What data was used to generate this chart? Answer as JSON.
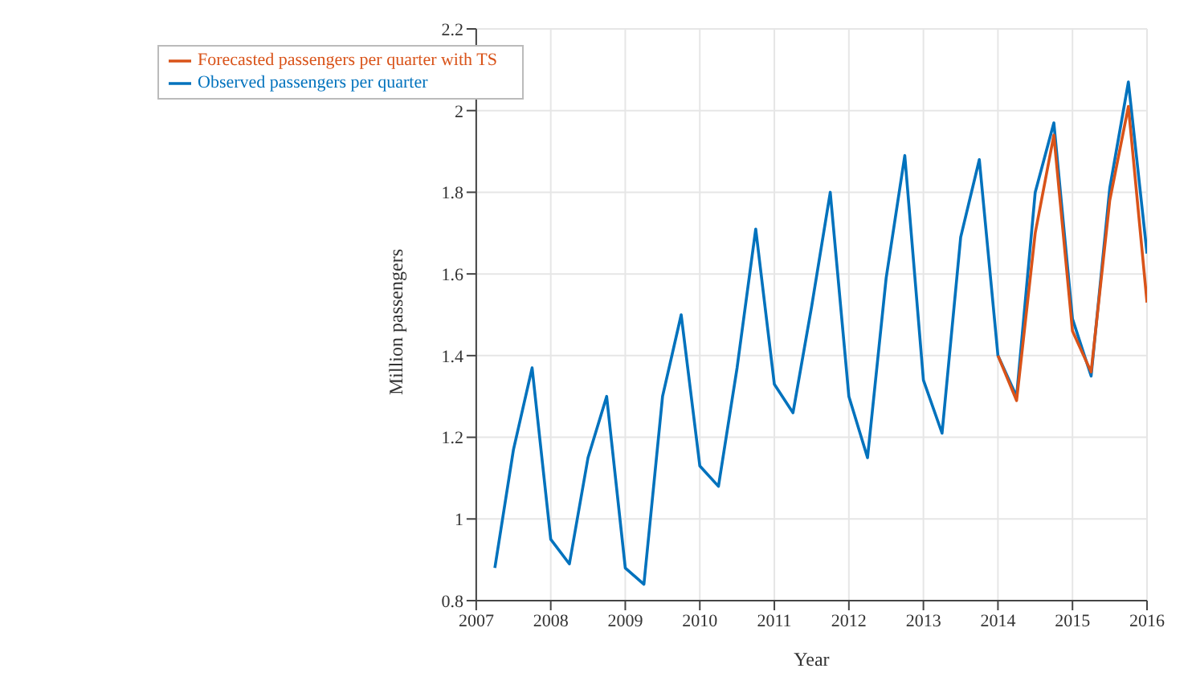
{
  "chart_data": {
    "type": "line",
    "xlabel": "Year",
    "ylabel": "Million passengers",
    "xlim": [
      2007,
      2016
    ],
    "xticks": [
      2007,
      2008,
      2009,
      2010,
      2011,
      2012,
      2013,
      2014,
      2015,
      2016
    ],
    "ylim": [
      0.8,
      2.2
    ],
    "yticks": [
      0.8,
      1,
      1.2,
      1.4,
      1.6,
      1.8,
      2,
      2.2
    ],
    "grid": true,
    "legend": "top left",
    "marker": "none",
    "series": [
      {
        "name": "Observed passengers per quarter",
        "color": "#0072bd",
        "x": [
          2007.25,
          2007.5,
          2007.75,
          2008,
          2008.25,
          2008.5,
          2008.75,
          2009,
          2009.25,
          2009.5,
          2009.75,
          2010,
          2010.25,
          2010.5,
          2010.75,
          2011,
          2011.25,
          2011.5,
          2011.75,
          2012,
          2012.25,
          2012.5,
          2012.75,
          2013,
          2013.25,
          2013.5,
          2013.75,
          2014,
          2014.25,
          2014.5,
          2014.75,
          2015,
          2015.25,
          2015.5,
          2015.75,
          2016
        ],
        "values": [
          0.88,
          1.17,
          1.37,
          0.95,
          0.89,
          1.15,
          1.3,
          0.88,
          0.84,
          1.3,
          1.5,
          1.13,
          1.08,
          1.37,
          1.71,
          1.33,
          1.26,
          1.52,
          1.8,
          1.3,
          1.15,
          1.59,
          1.89,
          1.34,
          1.21,
          1.69,
          1.88,
          1.4,
          1.3,
          1.8,
          1.97,
          1.49,
          1.35,
          1.81,
          2.07,
          1.65
        ]
      },
      {
        "name": "Forecasted passengers per quarter with TS",
        "color": "#d95319",
        "x": [
          2014,
          2014.25,
          2014.5,
          2014.75,
          2015,
          2015.25,
          2015.5,
          2015.75,
          2016
        ],
        "values": [
          1.4,
          1.29,
          1.7,
          1.94,
          1.46,
          1.36,
          1.78,
          2.01,
          1.53
        ]
      }
    ]
  }
}
